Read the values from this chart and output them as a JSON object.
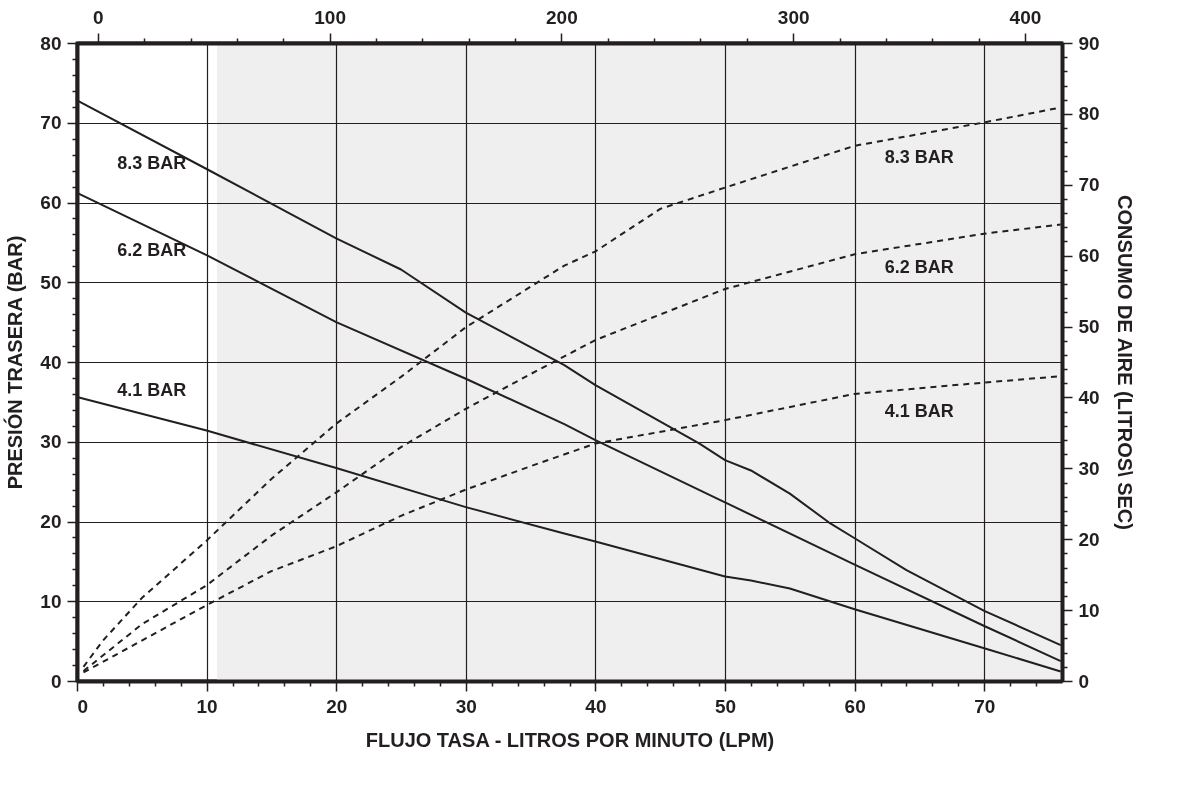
{
  "chart_data": {
    "type": "line",
    "xlabel": "FLUJO TASA - LITROS POR MINUTO (LPM)",
    "ylabel": "PRESIÓN TRASERA (BAR)",
    "y2label": "CONSUMO DE AIRE (LITROS\\ SEC)",
    "xlim": [
      0,
      76
    ],
    "ylim": [
      0,
      80
    ],
    "y2lim": [
      0,
      90
    ],
    "x2lim": [
      -9,
      416
    ],
    "xticks": [
      0,
      {
        "value": 2,
        "label": null
      },
      {
        "value": 4,
        "label": null
      },
      {
        "value": 6,
        "label": null
      },
      {
        "value": 8,
        "label": null
      },
      10,
      {
        "value": 12,
        "label": null
      },
      {
        "value": 14,
        "label": null
      },
      {
        "value": 16,
        "label": null
      },
      {
        "value": 18,
        "label": null
      },
      20,
      {
        "value": 22,
        "label": null
      },
      {
        "value": 24,
        "label": null
      },
      {
        "value": 26,
        "label": null
      },
      {
        "value": 28,
        "label": null
      },
      30,
      {
        "value": 32,
        "label": null
      },
      {
        "value": 34,
        "label": null
      },
      {
        "value": 36,
        "label": null
      },
      {
        "value": 38,
        "label": null
      },
      40,
      {
        "value": 42,
        "label": null
      },
      {
        "value": 44,
        "label": null
      },
      {
        "value": 46,
        "label": null
      },
      {
        "value": 48,
        "label": null
      },
      50,
      {
        "value": 52,
        "label": null
      },
      {
        "value": 54,
        "label": null
      },
      {
        "value": 56,
        "label": null
      },
      {
        "value": 58,
        "label": null
      },
      60,
      {
        "value": 62,
        "label": null
      },
      {
        "value": 64,
        "label": null
      },
      {
        "value": 66,
        "label": null
      },
      {
        "value": 68,
        "label": null
      },
      70,
      {
        "value": 72,
        "label": null
      },
      {
        "value": 74,
        "label": null
      }
    ],
    "yticks": [
      0,
      {
        "value": 2,
        "label": null
      },
      {
        "value": 4,
        "label": null
      },
      {
        "value": 6,
        "label": null
      },
      {
        "value": 8,
        "label": null
      },
      10,
      {
        "value": 12,
        "label": null
      },
      {
        "value": 14,
        "label": null
      },
      {
        "value": 16,
        "label": null
      },
      {
        "value": 18,
        "label": null
      },
      20,
      {
        "value": 22,
        "label": null
      },
      {
        "value": 24,
        "label": null
      },
      {
        "value": 26,
        "label": null
      },
      {
        "value": 28,
        "label": null
      },
      30,
      {
        "value": 32,
        "label": null
      },
      {
        "value": 34,
        "label": null
      },
      {
        "value": 36,
        "label": null
      },
      {
        "value": 38,
        "label": null
      },
      40,
      {
        "value": 42,
        "label": null
      },
      {
        "value": 44,
        "label": null
      },
      {
        "value": 46,
        "label": null
      },
      {
        "value": 48,
        "label": null
      },
      50,
      {
        "value": 52,
        "label": null
      },
      {
        "value": 54,
        "label": null
      },
      {
        "value": 56,
        "label": null
      },
      {
        "value": 58,
        "label": null
      },
      60,
      {
        "value": 62,
        "label": null
      },
      {
        "value": 64,
        "label": null
      },
      {
        "value": 66,
        "label": null
      },
      {
        "value": 68,
        "label": null
      },
      70,
      {
        "value": 72,
        "label": null
      },
      {
        "value": 74,
        "label": null
      },
      {
        "value": 76,
        "label": null
      },
      {
        "value": 78,
        "label": null
      },
      80
    ],
    "y2ticks": [
      0,
      {
        "value": 2,
        "label": null
      },
      {
        "value": 4,
        "label": null
      },
      {
        "value": 6,
        "label": null
      },
      {
        "value": 8,
        "label": null
      },
      10,
      {
        "value": 12,
        "label": null
      },
      {
        "value": 14,
        "label": null
      },
      {
        "value": 16,
        "label": null
      },
      {
        "value": 18,
        "label": null
      },
      20,
      {
        "value": 22,
        "label": null
      },
      {
        "value": 24,
        "label": null
      },
      {
        "value": 26,
        "label": null
      },
      {
        "value": 28,
        "label": null
      },
      30,
      {
        "value": 32,
        "label": null
      },
      {
        "value": 34,
        "label": null
      },
      {
        "value": 36,
        "label": null
      },
      {
        "value": 38,
        "label": null
      },
      40,
      {
        "value": 42,
        "label": null
      },
      {
        "value": 44,
        "label": null
      },
      {
        "value": 46,
        "label": null
      },
      {
        "value": 48,
        "label": null
      },
      50,
      {
        "value": 52,
        "label": null
      },
      {
        "value": 54,
        "label": null
      },
      {
        "value": 56,
        "label": null
      },
      {
        "value": 58,
        "label": null
      },
      60,
      {
        "value": 62,
        "label": null
      },
      {
        "value": 64,
        "label": null
      },
      {
        "value": 66,
        "label": null
      },
      {
        "value": 68,
        "label": null
      },
      70,
      {
        "value": 72,
        "label": null
      },
      {
        "value": 74,
        "label": null
      },
      {
        "value": 76,
        "label": null
      },
      {
        "value": 78,
        "label": null
      },
      80,
      {
        "value": 82,
        "label": null
      },
      {
        "value": 84,
        "label": null
      },
      {
        "value": 86,
        "label": null
      },
      {
        "value": 88,
        "label": null
      },
      90
    ],
    "x2ticks": [
      0,
      {
        "value": 20,
        "label": null
      },
      {
        "value": 40,
        "label": null
      },
      {
        "value": 60,
        "label": null
      },
      {
        "value": 80,
        "label": null
      },
      100,
      {
        "value": 120,
        "label": null
      },
      {
        "value": 140,
        "label": null
      },
      {
        "value": 160,
        "label": null
      },
      {
        "value": 180,
        "label": null
      },
      200,
      {
        "value": 220,
        "label": null
      },
      {
        "value": 240,
        "label": null
      },
      {
        "value": 260,
        "label": null
      },
      {
        "value": 280,
        "label": null
      },
      300,
      {
        "value": 320,
        "label": null
      },
      {
        "value": 340,
        "label": null
      },
      {
        "value": 360,
        "label": null
      },
      {
        "value": 380,
        "label": null
      },
      400
    ],
    "grid": true,
    "marker": "none",
    "bands": [
      {
        "axis": "x",
        "from": 10.8,
        "to": 76,
        "color": "#efefef"
      }
    ],
    "series": [
      {
        "name": "8.3 BAR",
        "color": "#231f20",
        "line_style": "solid",
        "x": [
          0,
          10,
          20,
          25,
          30,
          37.6,
          40,
          48,
          50,
          52,
          55,
          58,
          60,
          64,
          70,
          75.9
        ],
        "values": [
          72.8,
          64.2,
          55.5,
          51.6,
          46.2,
          39.6,
          37.1,
          29.8,
          27.7,
          26.4,
          23.5,
          19.9,
          17.9,
          13.9,
          8.8,
          4.5
        ]
      },
      {
        "name": "6.2  BAR",
        "color": "#231f20",
        "line_style": "solid",
        "x": [
          0,
          10,
          20,
          30,
          37.6,
          40,
          50,
          60,
          70,
          75.9
        ],
        "values": [
          61.2,
          53.4,
          45,
          37.9,
          32.2,
          30.2,
          22.4,
          14.6,
          6.9,
          2.5
        ]
      },
      {
        "name": "4.1 BAR",
        "color": "#231f20",
        "line_style": "solid",
        "x": [
          0,
          10,
          20,
          30,
          37.6,
          40,
          50,
          52,
          55,
          60,
          70,
          75.9
        ],
        "values": [
          35.6,
          31.4,
          26.7,
          21.8,
          18.5,
          17.5,
          13.1,
          12.6,
          11.6,
          9,
          4.1,
          1.2
        ]
      },
      {
        "name": "8.3 BAR",
        "color": "#231f20",
        "line_style": "dashed",
        "axis": "y2",
        "x": [
          0.5,
          2,
          5,
          10,
          15,
          20,
          25,
          30,
          37.6,
          40,
          45,
          50,
          60,
          70,
          75.9
        ],
        "values": [
          2,
          5.7,
          11.7,
          19.8,
          28.5,
          36.3,
          42.9,
          49.9,
          58.6,
          60.6,
          66.6,
          69.6,
          75.5,
          78.8,
          80.9
        ]
      },
      {
        "name": "6.2 BAR",
        "color": "#231f20",
        "line_style": "dashed",
        "axis": "y2",
        "x": [
          0.5,
          5,
          10,
          15,
          20,
          25,
          30,
          35,
          40,
          50,
          60,
          70,
          75.9
        ],
        "values": [
          1.4,
          8,
          13.5,
          20.5,
          26.6,
          33,
          38.4,
          43.3,
          48.1,
          55.3,
          60.2,
          63.1,
          64.4
        ]
      },
      {
        "name": "4.1 BAR",
        "color": "#231f20",
        "line_style": "dashed",
        "axis": "y2",
        "x": [
          0.5,
          5,
          10,
          15,
          20,
          25,
          30,
          35,
          40,
          50,
          60,
          70,
          75.9
        ],
        "values": [
          1.2,
          5.7,
          10.7,
          15.5,
          19,
          23.3,
          27,
          30.3,
          33.5,
          36.8,
          40.5,
          42.1,
          43
        ]
      }
    ]
  }
}
